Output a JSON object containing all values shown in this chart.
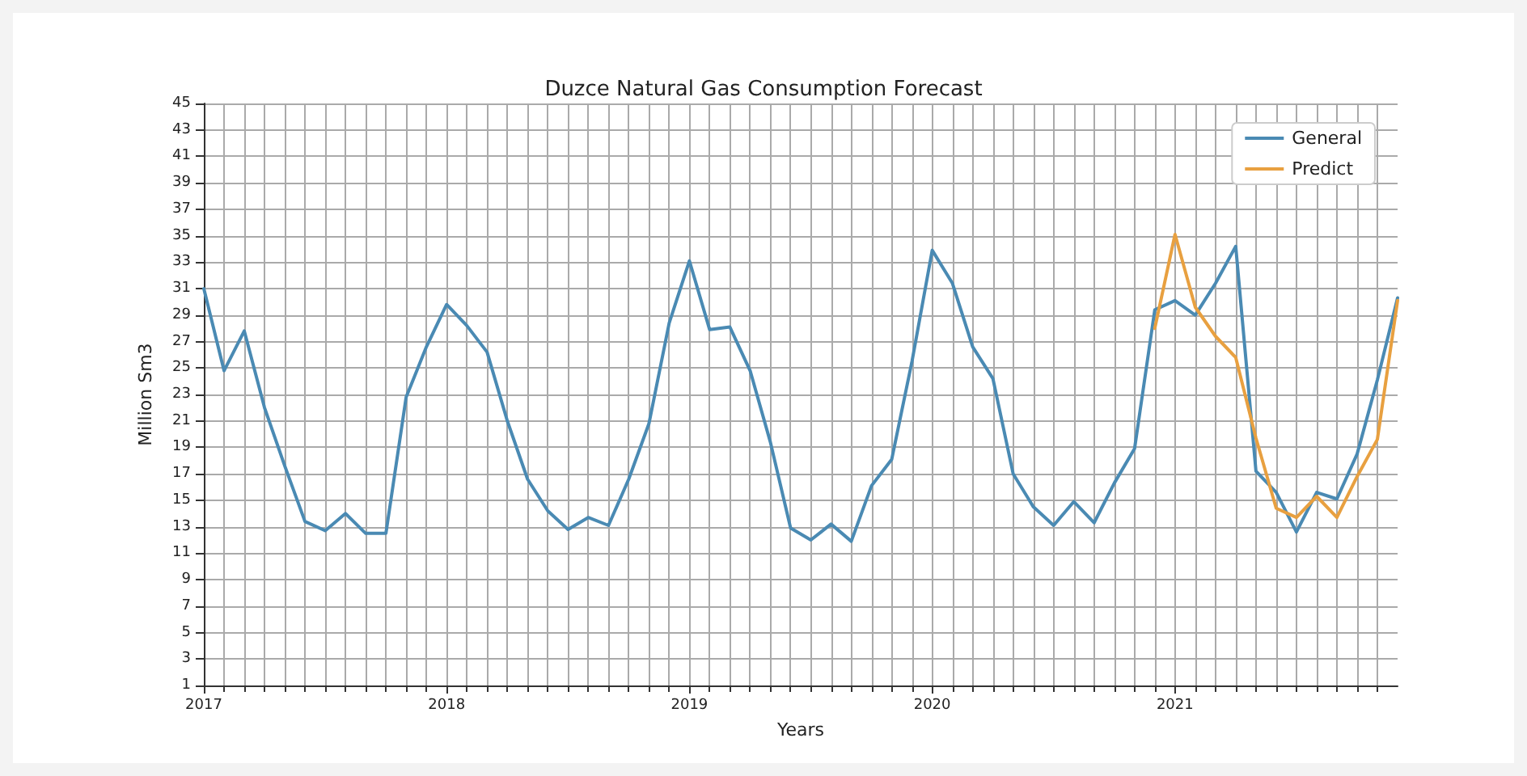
{
  "chart_data": {
    "type": "line",
    "title": "Duzce Natural Gas Consumption Forecast",
    "xlabel": "Years",
    "ylabel": "Million Sm3",
    "x": [
      "2017-01",
      "2017-02",
      "2017-03",
      "2017-04",
      "2017-05",
      "2017-06",
      "2017-07",
      "2017-08",
      "2017-09",
      "2017-10",
      "2017-11",
      "2017-12",
      "2018-01",
      "2018-02",
      "2018-03",
      "2018-04",
      "2018-05",
      "2018-06",
      "2018-07",
      "2018-08",
      "2018-09",
      "2018-10",
      "2018-11",
      "2018-12",
      "2019-01",
      "2019-02",
      "2019-03",
      "2019-04",
      "2019-05",
      "2019-06",
      "2019-07",
      "2019-08",
      "2019-09",
      "2019-10",
      "2019-11",
      "2019-12",
      "2020-01",
      "2020-02",
      "2020-03",
      "2020-04",
      "2020-05",
      "2020-06",
      "2020-07",
      "2020-08",
      "2020-09",
      "2020-10",
      "2020-11",
      "2020-12",
      "2021-01",
      "2021-02",
      "2021-03",
      "2021-04",
      "2021-05",
      "2021-06",
      "2021-07",
      "2021-08",
      "2021-09",
      "2021-10",
      "2021-11",
      "2021-12"
    ],
    "series": [
      {
        "name": "General",
        "color": "#4a8ab3",
        "values": [
          31,
          24.8,
          27.8,
          22,
          17.6,
          13.4,
          12.7,
          14,
          12.5,
          12.5,
          22.8,
          26.6,
          29.8,
          28.2,
          26.2,
          21,
          16.6,
          14.2,
          12.8,
          13.7,
          13.1,
          16.6,
          20.8,
          28.4,
          33.1,
          27.9,
          28.1,
          24.8,
          19.4,
          12.9,
          12,
          13.2,
          11.9,
          16.1,
          18.1,
          25.5,
          33.9,
          31.4,
          26.6,
          24.2,
          17,
          14.5,
          13.1,
          14.9,
          13.3,
          16.3,
          18.9,
          29.4,
          30.1,
          29,
          31.4,
          34.2,
          17.2,
          15.6,
          12.6,
          15.6,
          15.1,
          18.5,
          24.1,
          30.3
        ]
      },
      {
        "name": "Predict",
        "color": "#e8a040",
        "x": [
          "2020-12",
          "2021-01",
          "2021-02",
          "2021-03",
          "2021-04",
          "2021-05",
          "2021-06",
          "2021-07",
          "2021-08",
          "2021-09",
          "2021-10",
          "2021-11",
          "2021-12"
        ],
        "values": [
          28,
          35.1,
          29.6,
          27.4,
          25.8,
          19.7,
          14.4,
          13.7,
          15.3,
          13.7,
          16.8,
          19.6,
          30.1
        ]
      }
    ],
    "xlim": [
      "2017-01",
      "2021-12"
    ],
    "xticks": [
      "2017",
      "2018",
      "2019",
      "2020",
      "2021"
    ],
    "ylim": [
      1,
      45
    ],
    "yticks": [
      1,
      3,
      5,
      7,
      9,
      11,
      13,
      15,
      17,
      19,
      21,
      23,
      25,
      27,
      29,
      31,
      33,
      35,
      37,
      39,
      41,
      43,
      45
    ],
    "grid": true,
    "legend": "top right",
    "line_style": "solid",
    "marker": "none"
  }
}
